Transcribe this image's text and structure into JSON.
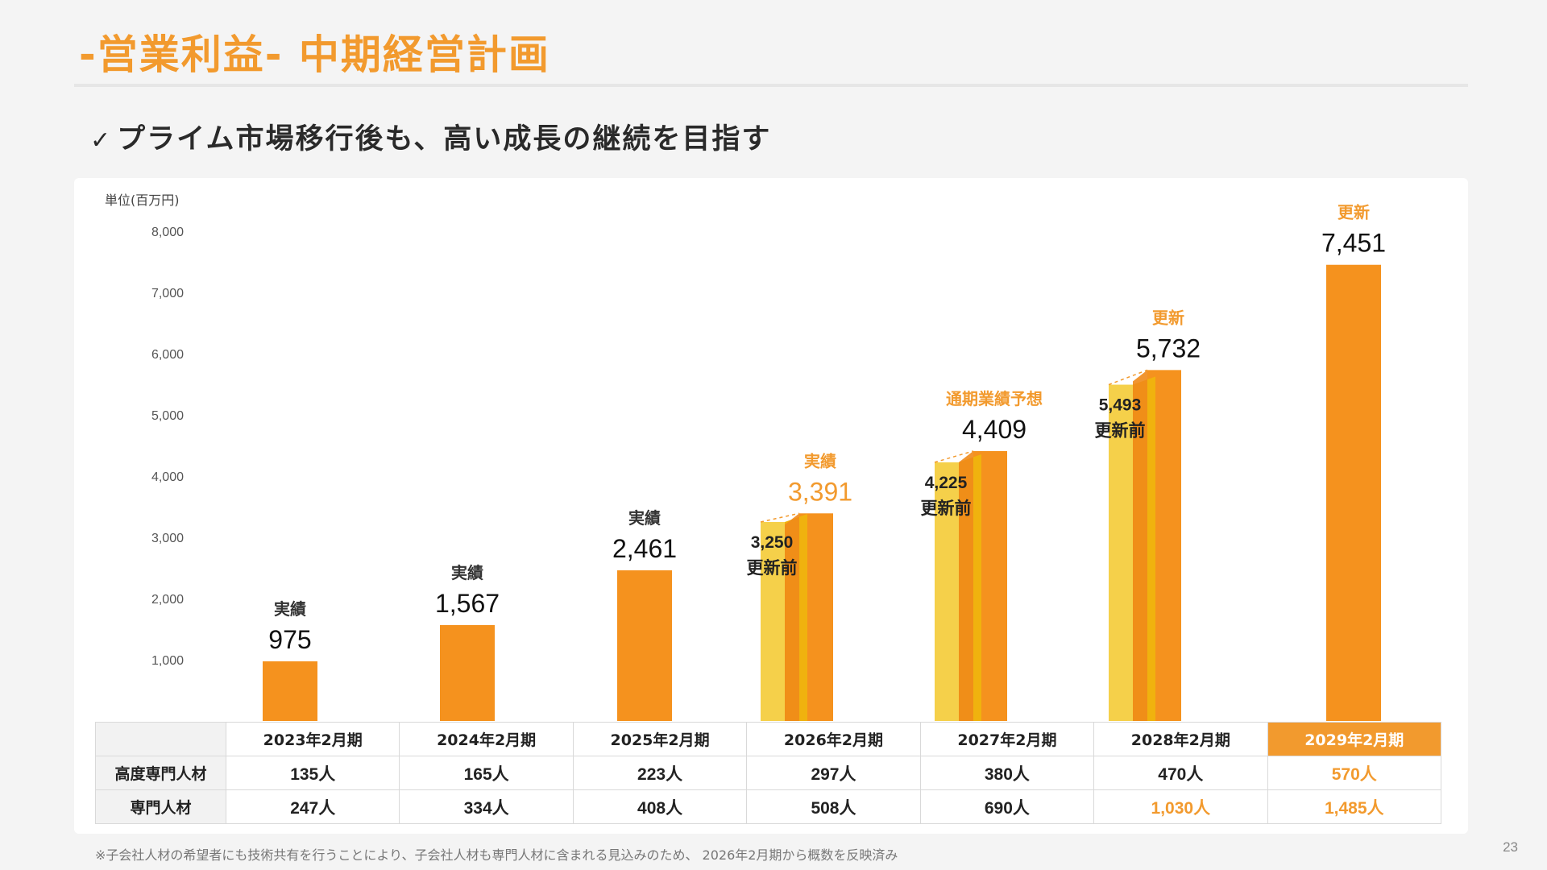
{
  "header": {
    "title": "-営業利益- 中期経営計画",
    "subtitle_check": "✓",
    "subtitle": "プライム市場移行後も、高い成長の継続を目指す"
  },
  "chart_data": {
    "type": "bar",
    "unit_label": "単位(百万円)",
    "ylim": [
      0,
      8000
    ],
    "yticks": [
      "1,000",
      "2,000",
      "3,000",
      "4,000",
      "5,000",
      "6,000",
      "7,000",
      "8,000"
    ],
    "grid": false,
    "categories": [
      "2023年2月期",
      "2024年2月期",
      "2025年2月期",
      "2026年2月期",
      "2027年2月期",
      "2028年2月期",
      "2029年2月期"
    ],
    "series": [
      {
        "name": "更新前",
        "values": [
          null,
          null,
          null,
          3250,
          4225,
          5493,
          null
        ]
      },
      {
        "values": [
          975,
          1567,
          2461,
          3391,
          4409,
          5732,
          7451
        ]
      }
    ],
    "value_labels": [
      "975",
      "1,567",
      "2,461",
      "3,391",
      "4,409",
      "5,732",
      "7,451"
    ],
    "status_labels": [
      "実績",
      "実績",
      "実績",
      "実績",
      "通期業績予想",
      "更新",
      "更新"
    ],
    "prior_labels": [
      "",
      "",
      "",
      "3,250",
      "4,225",
      "5,493",
      ""
    ],
    "prior_caption": "更新前",
    "colors": {
      "main": "#f5921e",
      "main_side": "#f08a1a",
      "prior": "#f5d04a",
      "prior_side": "#f0b20e",
      "accent_text": "#f29a2e"
    }
  },
  "table": {
    "years": [
      "2023年2月期",
      "2024年2月期",
      "2025年2月期",
      "2026年2月期",
      "2027年2月期",
      "2028年2月期",
      "2029年2月期"
    ],
    "rows": [
      {
        "label": "高度専門人材",
        "values": [
          "135人",
          "165人",
          "223人",
          "297人",
          "380人",
          "470人",
          "570人"
        ]
      },
      {
        "label": "専門人材",
        "values": [
          "247人",
          "334人",
          "408人",
          "508人",
          "690人",
          "1,030人",
          "1,485人"
        ]
      }
    ]
  },
  "footnote": "※子会社人材の希望者にも技術共有を行うことにより、子会社人材も専門人材に含まれる見込みのため、 2026年2月期から概数を反映済み",
  "page_number": "23"
}
